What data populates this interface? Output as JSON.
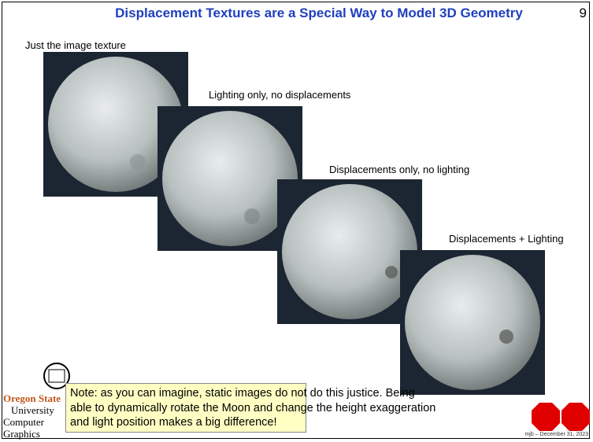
{
  "header": {
    "title": "Displacement Textures are a Special Way to Model 3D Geometry",
    "page_number": "9"
  },
  "panels": [
    {
      "caption": "Just the image texture"
    },
    {
      "caption": "Lighting only, no displacements"
    },
    {
      "caption": "Displacements only, no lighting"
    },
    {
      "caption": "Displacements + Lighting"
    }
  ],
  "logo": {
    "lines": [
      "Oregon State",
      "University",
      "Computer Graphics"
    ]
  },
  "note": {
    "lines": [
      "Note: as you can imagine, static images do not do this justice.  Being",
      "able to dynamically rotate the Moon and change the height exaggeration",
      "and light position makes a big difference!"
    ]
  },
  "footer": "mjb – December 31, 2023"
}
